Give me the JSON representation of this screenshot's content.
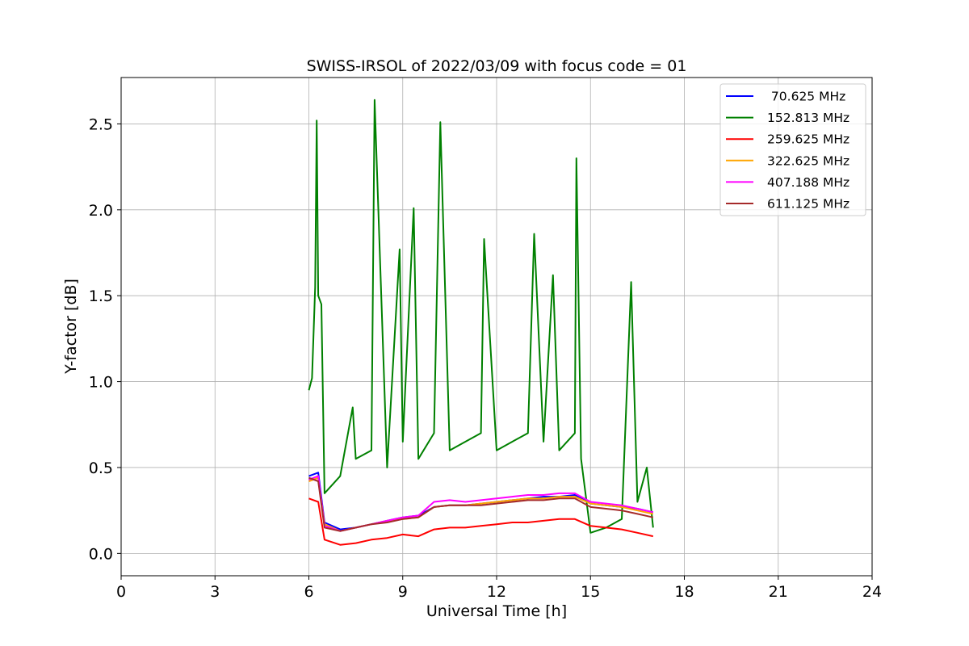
{
  "chart_data": {
    "type": "line",
    "title": "SWISS-IRSOL of 2022/03/09 with focus code = 01",
    "xlabel": "Universal Time [h]",
    "ylabel": "Y-factor [dB]",
    "xlim": [
      0,
      24
    ],
    "ylim": [
      -0.13,
      2.77
    ],
    "xticks": [
      "0",
      "3",
      "6",
      "9",
      "12",
      "15",
      "18",
      "21",
      "24"
    ],
    "yticks": [
      "0.0",
      "0.5",
      "1.0",
      "1.5",
      "2.0",
      "2.5"
    ],
    "grid": true,
    "legend_position": "top-right",
    "series": [
      {
        "name": " 70.625 MHz",
        "color": "#0000ff",
        "x": [
          6.0,
          6.3,
          6.5,
          7.0,
          7.5,
          8.0,
          8.5,
          9.0,
          9.5,
          10.0,
          10.5,
          11.0,
          11.5,
          12.0,
          12.5,
          13.0,
          13.5,
          14.0,
          14.5,
          15.0,
          15.5,
          16.0,
          16.5,
          17.0
        ],
        "y": [
          0.45,
          0.47,
          0.18,
          0.14,
          0.15,
          0.17,
          0.19,
          0.21,
          0.22,
          0.27,
          0.28,
          0.28,
          0.29,
          0.3,
          0.31,
          0.32,
          0.33,
          0.33,
          0.34,
          0.29,
          0.28,
          0.27,
          0.26,
          0.24
        ]
      },
      {
        "name": "152.813 MHz",
        "color": "#008000",
        "x": [
          6.0,
          6.1,
          6.2,
          6.25,
          6.3,
          6.4,
          6.5,
          7.0,
          7.4,
          7.5,
          8.0,
          8.1,
          8.5,
          8.9,
          9.0,
          9.35,
          9.5,
          10.0,
          10.2,
          10.5,
          11.0,
          11.5,
          11.6,
          12.0,
          12.5,
          13.0,
          13.2,
          13.5,
          13.8,
          14.0,
          14.5,
          14.55,
          14.7,
          15.0,
          15.5,
          16.0,
          16.3,
          16.5,
          16.8,
          17.0
        ],
        "y": [
          0.95,
          1.02,
          1.55,
          2.52,
          1.5,
          1.45,
          0.35,
          0.45,
          0.85,
          0.55,
          0.6,
          2.64,
          0.5,
          1.77,
          0.65,
          2.01,
          0.55,
          0.7,
          2.51,
          0.6,
          0.65,
          0.7,
          1.83,
          0.6,
          0.65,
          0.7,
          1.86,
          0.65,
          1.62,
          0.6,
          0.7,
          2.3,
          0.55,
          0.12,
          0.15,
          0.2,
          1.58,
          0.3,
          0.5,
          0.15
        ]
      },
      {
        "name": "259.625 MHz",
        "color": "#ff0000",
        "x": [
          6.0,
          6.3,
          6.5,
          7.0,
          7.5,
          8.0,
          8.5,
          9.0,
          9.5,
          10.0,
          10.5,
          11.0,
          11.5,
          12.0,
          12.5,
          13.0,
          13.5,
          14.0,
          14.5,
          15.0,
          15.5,
          16.0,
          16.5,
          17.0
        ],
        "y": [
          0.32,
          0.3,
          0.08,
          0.05,
          0.06,
          0.08,
          0.09,
          0.11,
          0.1,
          0.14,
          0.15,
          0.15,
          0.16,
          0.17,
          0.18,
          0.18,
          0.19,
          0.2,
          0.2,
          0.16,
          0.15,
          0.14,
          0.12,
          0.1
        ]
      },
      {
        "name": "322.625 MHz",
        "color": "#ffa500",
        "x": [
          6.0,
          6.3,
          6.5,
          7.0,
          7.5,
          8.0,
          8.5,
          9.0,
          9.5,
          10.0,
          10.5,
          11.0,
          11.5,
          12.0,
          12.5,
          13.0,
          13.5,
          14.0,
          14.5,
          15.0,
          15.5,
          16.0,
          16.5,
          17.0
        ],
        "y": [
          0.42,
          0.44,
          0.17,
          0.13,
          0.15,
          0.17,
          0.19,
          0.2,
          0.21,
          0.27,
          0.28,
          0.28,
          0.29,
          0.3,
          0.31,
          0.32,
          0.32,
          0.33,
          0.33,
          0.29,
          0.28,
          0.27,
          0.25,
          0.23
        ]
      },
      {
        "name": "407.188 MHz",
        "color": "#ff00ff",
        "x": [
          6.0,
          6.3,
          6.5,
          7.0,
          7.5,
          8.0,
          8.5,
          9.0,
          9.5,
          10.0,
          10.5,
          11.0,
          11.5,
          12.0,
          12.5,
          13.0,
          13.5,
          14.0,
          14.5,
          15.0,
          15.5,
          16.0,
          16.5,
          17.0
        ],
        "y": [
          0.43,
          0.45,
          0.16,
          0.13,
          0.15,
          0.17,
          0.19,
          0.21,
          0.22,
          0.3,
          0.31,
          0.3,
          0.31,
          0.32,
          0.33,
          0.34,
          0.34,
          0.35,
          0.35,
          0.3,
          0.29,
          0.28,
          0.26,
          0.24
        ]
      },
      {
        "name": "611.125 MHz",
        "color": "#a52a2a",
        "x": [
          6.0,
          6.3,
          6.5,
          7.0,
          7.5,
          8.0,
          8.5,
          9.0,
          9.5,
          10.0,
          10.5,
          11.0,
          11.5,
          12.0,
          12.5,
          13.0,
          13.5,
          14.0,
          14.5,
          15.0,
          15.5,
          16.0,
          16.5,
          17.0
        ],
        "y": [
          0.44,
          0.42,
          0.15,
          0.13,
          0.15,
          0.17,
          0.18,
          0.2,
          0.21,
          0.27,
          0.28,
          0.28,
          0.28,
          0.29,
          0.3,
          0.31,
          0.31,
          0.32,
          0.32,
          0.27,
          0.26,
          0.25,
          0.23,
          0.21
        ]
      }
    ]
  }
}
